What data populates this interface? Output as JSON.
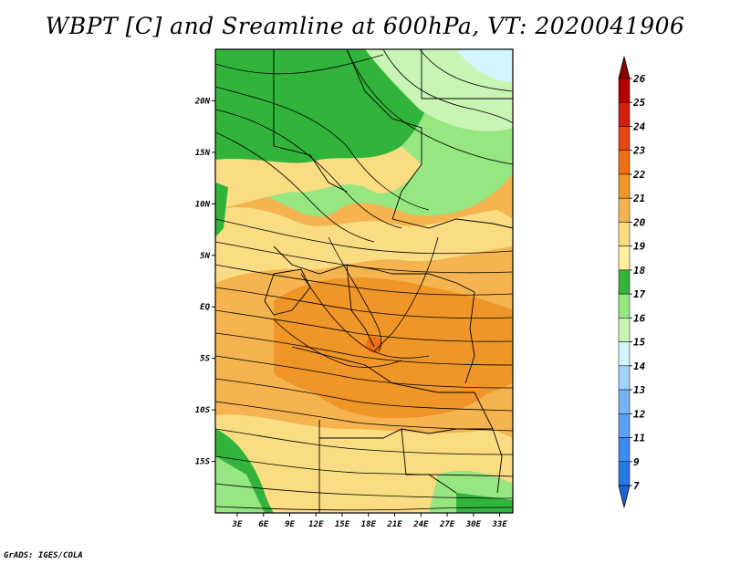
{
  "title": "WBPT [C] and Sreamline at 600hPa, VT: 2020041906",
  "credit": "GrADS: IGES/COLA",
  "map": {
    "lon_labels": [
      "3E",
      "6E",
      "9E",
      "12E",
      "15E",
      "18E",
      "21E",
      "24E",
      "27E",
      "30E",
      "33E"
    ],
    "lon_values": [
      3,
      6,
      9,
      12,
      15,
      18,
      21,
      24,
      27,
      30,
      33
    ],
    "lat_labels": [
      "20N",
      "15N",
      "10N",
      "5N",
      "EQ",
      "5S",
      "10S",
      "15S"
    ],
    "lat_values": [
      20,
      15,
      10,
      5,
      0,
      -5,
      -10,
      -15
    ],
    "lon_range": [
      0.5,
      34.5
    ],
    "lat_range": [
      -20,
      25
    ]
  },
  "colorbar": {
    "labels": [
      "7",
      "9",
      "11",
      "12",
      "13",
      "14",
      "15",
      "16",
      "17",
      "18",
      "19",
      "20",
      "21",
      "22",
      "23",
      "24",
      "25",
      "26"
    ],
    "colors": [
      "#1e64d8",
      "#2878e6",
      "#3c8cf0",
      "#5aa0f5",
      "#78b4f5",
      "#a0d2fa",
      "#d2f5ff",
      "#c8f5b4",
      "#96e682",
      "#32b43c",
      "#fff0a0",
      "#fadc82",
      "#f5b450",
      "#f09628",
      "#f06e14",
      "#e64614",
      "#d21e0a",
      "#b40000",
      "#8c0000"
    ]
  }
}
